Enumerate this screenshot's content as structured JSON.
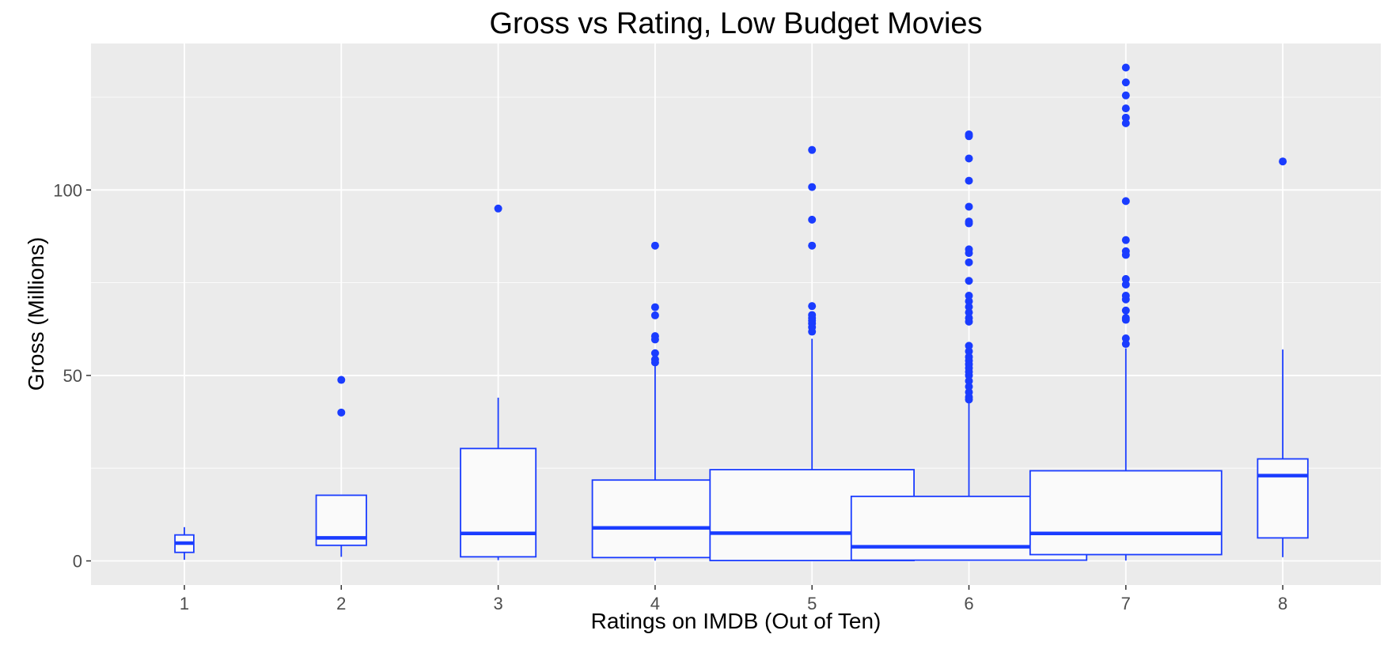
{
  "chart_data": {
    "type": "box",
    "title": "Gross vs Rating, Low Budget Movies",
    "xlabel": "Ratings on IMDB (Out of Ten)",
    "ylabel": "Gross (Millions)",
    "x_categories": [
      "1",
      "2",
      "3",
      "4",
      "5",
      "6",
      "7",
      "8"
    ],
    "y_ticks": [
      0,
      50,
      100
    ],
    "y_tick_labels": [
      "0",
      "50",
      "100"
    ],
    "ylim": [
      -6.5,
      139.5
    ],
    "grid": true,
    "colors": {
      "panel": "#ebebeb",
      "grid": "#ffffff",
      "box_stroke": "#1a3cff",
      "box_fill": "#fafafa",
      "outlier": "#1a3cff"
    },
    "boxes": [
      {
        "x": "1",
        "min": 0.3,
        "q1": 2.3,
        "median": 4.8,
        "q3": 7.0,
        "max": 9.1,
        "width_rel": 0.12,
        "outliers": []
      },
      {
        "x": "2",
        "min": 1.1,
        "q1": 4.2,
        "median": 6.2,
        "q3": 17.7,
        "max": 17.7,
        "width_rel": 0.32,
        "outliers": [
          40.0,
          48.8
        ]
      },
      {
        "x": "3",
        "min": 0.2,
        "q1": 1.1,
        "median": 7.4,
        "q3": 30.3,
        "max": 44.0,
        "width_rel": 0.48,
        "outliers": [
          95.0
        ]
      },
      {
        "x": "4",
        "min": 0.1,
        "q1": 0.9,
        "median": 8.9,
        "q3": 21.8,
        "max": 52.5,
        "width_rel": 0.8,
        "outliers": [
          53.5,
          54.3,
          56.0,
          59.7,
          60.6,
          66.2,
          68.4,
          85.0
        ]
      },
      {
        "x": "5",
        "min": 0.0,
        "q1": 0.1,
        "median": 7.5,
        "q3": 24.6,
        "max": 59.9,
        "width_rel": 1.3,
        "outliers": [
          61.8,
          63.0,
          64.0,
          64.8,
          65.5,
          66.3,
          68.7,
          85.0,
          92.0,
          100.8,
          110.8
        ]
      },
      {
        "x": "6",
        "min": 0.0,
        "q1": 0.2,
        "median": 3.8,
        "q3": 17.4,
        "max": 43.0,
        "width_rel": 1.5,
        "outliers": [
          43.5,
          44.2,
          45.5,
          47.0,
          48.5,
          50.0,
          51.0,
          52.0,
          53.0,
          54.0,
          55.0,
          56.5,
          58.0,
          64.5,
          65.5,
          67.0,
          68.5,
          70.0,
          71.5,
          75.5,
          80.5,
          83.0,
          84.0,
          91.0,
          91.5,
          95.5,
          102.5,
          108.5,
          114.5,
          115.0
        ]
      },
      {
        "x": "7",
        "min": 0.1,
        "q1": 1.7,
        "median": 7.4,
        "q3": 24.3,
        "max": 57.3,
        "width_rel": 1.22,
        "outliers": [
          58.5,
          60.0,
          65.0,
          65.5,
          67.5,
          70.5,
          71.5,
          74.5,
          76.0,
          82.5,
          83.5,
          86.5,
          97.0,
          118.0,
          119.5,
          122.0,
          125.5,
          129.0,
          133.0
        ]
      },
      {
        "x": "8",
        "min": 1.0,
        "q1": 6.2,
        "median": 23.0,
        "q3": 27.5,
        "max": 57.0,
        "width_rel": 0.32,
        "outliers": [
          107.7
        ]
      }
    ]
  }
}
